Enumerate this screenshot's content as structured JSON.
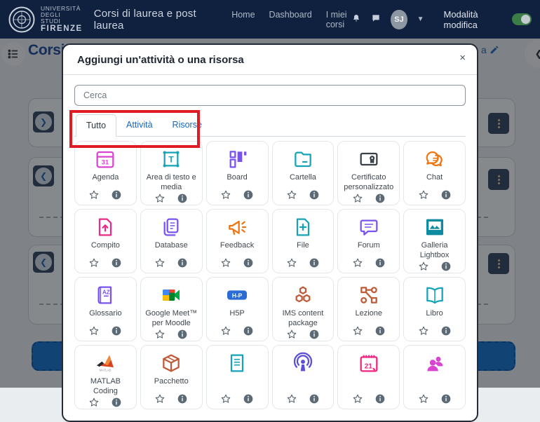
{
  "navbar": {
    "logo_lines": [
      "UNIVERSITÀ",
      "DEGLI STUDI",
      "FIRENZE"
    ],
    "sitename": "Corsi di laurea e post laurea",
    "links": [
      "Home",
      "Dashboard",
      "I miei corsi"
    ],
    "avatar_initials": "SJ",
    "edit_mode_label": "Modalità modifica",
    "edit_mode_on": true,
    "colors": {
      "navbar_bg": "#10203f",
      "toggle_on": "#3c7c46"
    }
  },
  "page": {
    "title": "Corsi",
    "edit_fragment": "a"
  },
  "modal": {
    "title": "Aggiungi un'attività o una risorsa",
    "close_label": "×",
    "search_placeholder": "Cerca",
    "annotation_color": "#e01b24",
    "tabs": [
      {
        "label": "Tutto",
        "active": true
      },
      {
        "label": "Attività",
        "active": false
      },
      {
        "label": "Risorse",
        "active": false
      }
    ],
    "items": [
      {
        "label": "Agenda",
        "icon": "calendar-31-icon",
        "color": "#d944d0"
      },
      {
        "label": "Area di testo e media",
        "icon": "text-media-icon",
        "color": "#16a3b8"
      },
      {
        "label": "Board",
        "icon": "board-tiles-icon",
        "color": "#7a52f0"
      },
      {
        "label": "Cartella",
        "icon": "folder-icon",
        "color": "#16a3b8"
      },
      {
        "label": "Certificato personalizzato",
        "icon": "certificate-icon",
        "color": "#3a4047"
      },
      {
        "label": "Chat",
        "icon": "chat-bubbles-icon",
        "color": "#ee7512"
      },
      {
        "label": "Compito",
        "icon": "upload-doc-icon",
        "color": "#ea2a84"
      },
      {
        "label": "Database",
        "icon": "stacked-docs-icon",
        "color": "#7a52f0"
      },
      {
        "label": "Feedback",
        "icon": "megaphone-icon",
        "color": "#ee7512"
      },
      {
        "label": "File",
        "icon": "doc-plus-icon",
        "color": "#16a3b8"
      },
      {
        "label": "Forum",
        "icon": "speech-bubble-icon",
        "color": "#7a52f0"
      },
      {
        "label": "Galleria Lightbox",
        "icon": "photo-frame-icon",
        "color": "#0e8ba0"
      },
      {
        "label": "Glossario",
        "icon": "glossary-book-icon",
        "color": "#7a52f0"
      },
      {
        "label": "Google Meet™ per Moodle",
        "icon": "google-meet-icon",
        "color": "#00832d"
      },
      {
        "label": "H5P",
        "icon": "h5p-badge-icon",
        "color": "#2a6cd4"
      },
      {
        "label": "IMS content package",
        "icon": "cubes-icon",
        "color": "#bf5b38"
      },
      {
        "label": "Lezione",
        "icon": "flowchart-icon",
        "color": "#bf5b38"
      },
      {
        "label": "Libro",
        "icon": "open-book-icon",
        "color": "#16a3b8"
      },
      {
        "label": "MATLAB Coding",
        "icon": "matlab-icon",
        "color": "#e8542c"
      },
      {
        "label": "Pacchetto",
        "icon": "package-box-icon",
        "color": "#bf5b38"
      },
      {
        "label": "",
        "icon": "doc-lines-icon",
        "color": "#16a3b8"
      },
      {
        "label": "",
        "icon": "podcast-icon",
        "color": "#5a4fd8"
      },
      {
        "label": "",
        "icon": "calendar-21-icon",
        "color": "#f0257f"
      },
      {
        "label": "",
        "icon": "group-people-icon",
        "color": "#d944d0"
      }
    ]
  }
}
